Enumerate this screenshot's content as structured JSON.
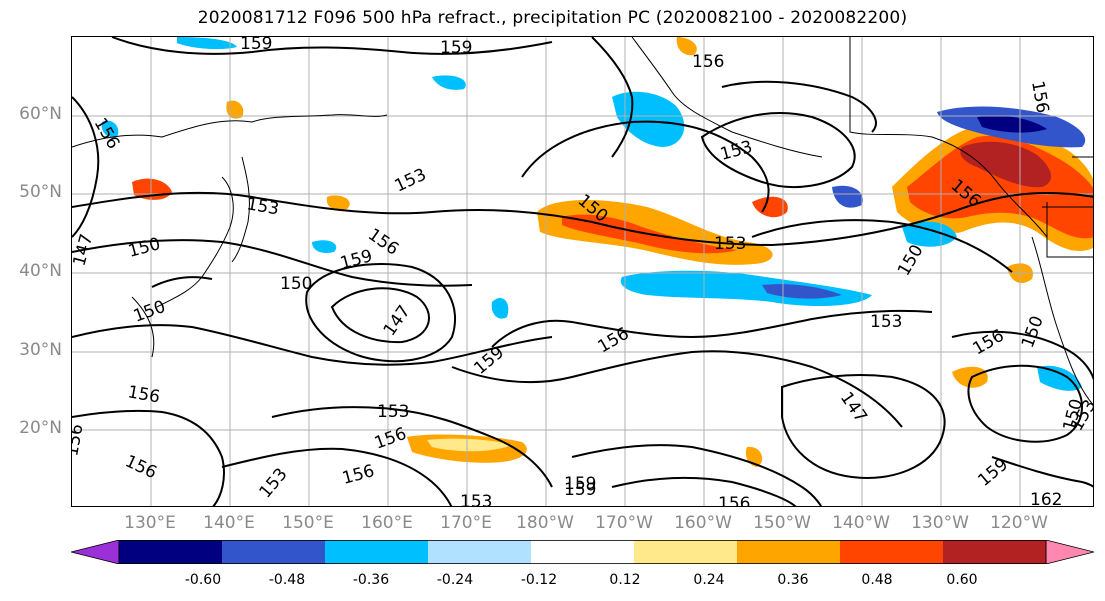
{
  "title": "2020081712 F096 500 hPa refract., precipitation PC (2020082100 - 2020082200)",
  "lat_labels": [
    "60°N",
    "50°N",
    "40°N",
    "30°N",
    "20°N"
  ],
  "lon_labels": [
    "130°E",
    "140°E",
    "150°E",
    "160°E",
    "170°E",
    "180°W",
    "170°W",
    "160°W",
    "150°W",
    "140°W",
    "130°W",
    "120°W"
  ],
  "contour_labels": [
    "159",
    "159",
    "156",
    "156",
    "156",
    "153",
    "153",
    "147",
    "150",
    "156",
    "159",
    "150",
    "150",
    "150",
    "153",
    "147",
    "159",
    "156",
    "153",
    "153",
    "150",
    "156",
    "147",
    "153",
    "156",
    "156",
    "153",
    "156",
    "156",
    "153",
    "159",
    "159",
    "156",
    "159",
    "162",
    "156",
    "150",
    "156",
    "150",
    "153"
  ],
  "colorbar": {
    "ticks": [
      "-0.60",
      "-0.48",
      "-0.36",
      "-0.24",
      "-0.12",
      "0.12",
      "0.24",
      "0.36",
      "0.48",
      "0.60"
    ],
    "colors": [
      "#9b30d8",
      "#000080",
      "#3355cc",
      "#00bfff",
      "#b0e2ff",
      "#ffffff",
      "#ffe98a",
      "#ffa500",
      "#ff4500",
      "#b22222",
      "#ff88b0"
    ]
  },
  "colors": {
    "contour": "#000000",
    "grid": "#b0b0b0",
    "axis_label": "#8a8a8a"
  }
}
